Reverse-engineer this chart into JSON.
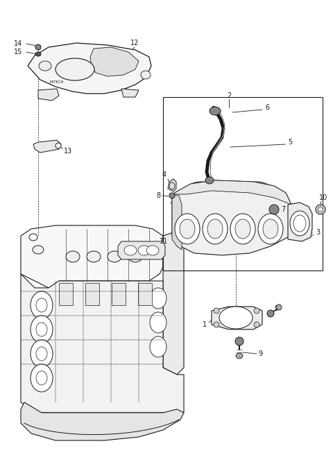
{
  "bg_color": "#ffffff",
  "line_color": "#1a1a1a",
  "fig_width": 4.8,
  "fig_height": 6.56,
  "dpi": 100
}
